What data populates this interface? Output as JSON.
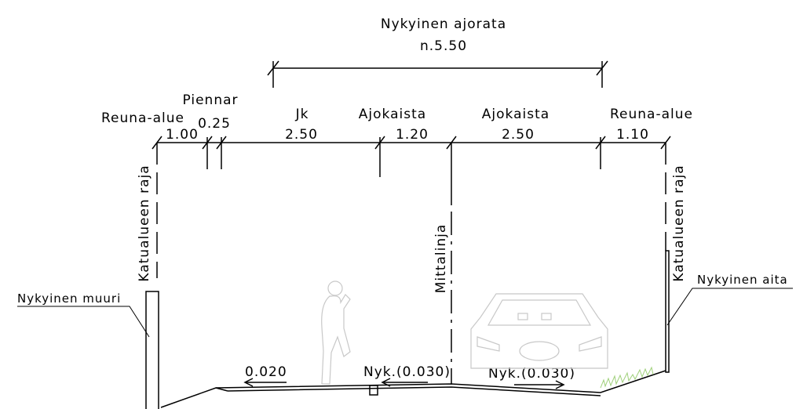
{
  "title": {
    "label": "Nykyinen ajorata",
    "value": "n.5.50"
  },
  "dimensions": [
    {
      "label": "Reuna-alue",
      "value": "1.00"
    },
    {
      "label": "Piennar",
      "value": "0.25"
    },
    {
      "label": "Jk",
      "value": "2.50"
    },
    {
      "label": "Ajokaista",
      "value": "1.20"
    },
    {
      "label": "Ajokaista",
      "value": "2.50"
    },
    {
      "label": "Reuna-alue",
      "value": "1.10"
    }
  ],
  "boundaries": {
    "left": "Katualueen raja",
    "right": "Katualueen raja",
    "center": "Mittalinja"
  },
  "callouts": {
    "wall": "Nykyinen muuri",
    "fence": "Nykyinen aita"
  },
  "slopes": [
    "0.020",
    "Nyk.(0.030)",
    "Nyk.(0.030)"
  ]
}
